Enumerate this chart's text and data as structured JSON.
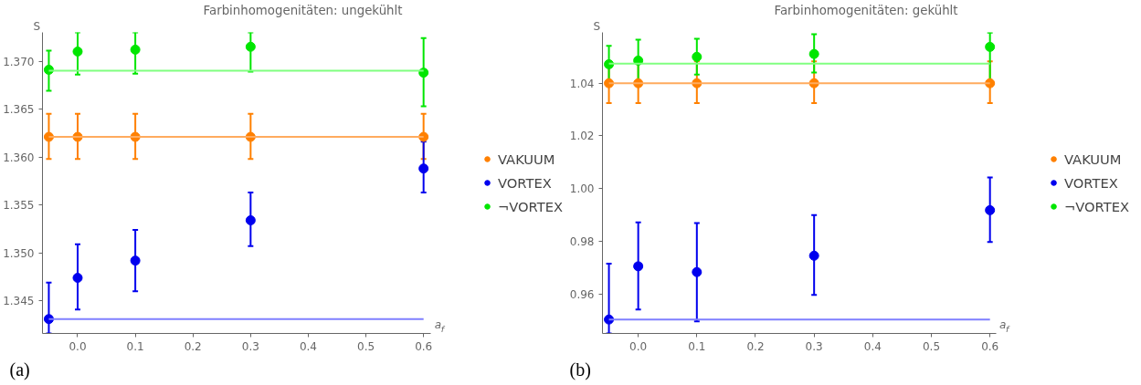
{
  "chart_data": [
    {
      "type": "scatter",
      "title": "Farbinhomogenitäten: ungekühlt",
      "xlabel": "a$_{f}$",
      "ylabel": "S",
      "xlim": [
        -0.061,
        0.613
      ],
      "ylim": [
        1.3416,
        1.373
      ],
      "xticks": [
        {
          "value": 0,
          "label": "0.0"
        },
        0.1,
        0.2,
        0.3,
        0.4,
        0.5,
        0.6
      ],
      "yticks": [
        1.345,
        {
          "value": 1.35,
          "label": "1.350"
        },
        1.355,
        {
          "value": 1.36,
          "label": "1.360"
        },
        1.365,
        {
          "value": 1.37,
          "label": "1.370"
        }
      ],
      "grid": false,
      "legend": "right",
      "marker": "circle",
      "annotations": [
        "(a)"
      ],
      "series": [
        {
          "name": "VAKUUM",
          "color": "#ff8000",
          "x": [
            -0.05,
            0,
            0.1,
            0.3,
            0.6
          ],
          "values": [
            1.3621,
            1.3621,
            1.3621,
            1.3621,
            1.3621
          ],
          "errors": [
            [
              1.3598,
              1.3645
            ],
            [
              1.3598,
              1.3645
            ],
            [
              1.3598,
              1.3645
            ],
            [
              1.3598,
              1.3645
            ],
            [
              1.3598,
              1.3645
            ]
          ]
        },
        {
          "name": "VORTEX",
          "color": "#0000ee",
          "x": [
            -0.05,
            0,
            0.1,
            0.3,
            0.6
          ],
          "values": [
            1.3431,
            1.3474,
            1.3492,
            1.3534,
            1.3588
          ],
          "errors": [
            [
              1.3416,
              1.3469
            ],
            [
              1.3441,
              1.3509
            ],
            [
              1.346,
              1.3524
            ],
            [
              1.3507,
              1.3563
            ],
            [
              1.3563,
              1.3616
            ]
          ]
        },
        {
          "name": "¬VORTEX",
          "color": "#00e600",
          "x": [
            -0.05,
            0,
            0.1,
            0.3,
            0.6
          ],
          "values": [
            1.3691,
            1.371,
            1.3712,
            1.3715,
            1.3688
          ],
          "errors": [
            [
              1.3669,
              1.3711
            ],
            [
              1.3686,
              1.373
            ],
            [
              1.3687,
              1.373
            ],
            [
              1.3689,
              1.373
            ],
            [
              1.3653,
              1.3724
            ]
          ]
        },
        {
          "type": "line",
          "marker": "none",
          "color": "#ffab5e",
          "x": [
            -0.05,
            0.6
          ],
          "values": [
            1.3621,
            1.3621
          ]
        },
        {
          "type": "line",
          "marker": "none",
          "color": "#7f7fff",
          "x": [
            -0.05,
            0.6
          ],
          "values": [
            1.3431,
            1.3431
          ]
        },
        {
          "type": "line",
          "marker": "none",
          "color": "#80ff80",
          "x": [
            -0.05,
            0.6
          ],
          "values": [
            1.369,
            1.369
          ]
        }
      ]
    },
    {
      "type": "scatter",
      "title": "Farbinhomogenitäten: gekühlt",
      "xlabel": "a$_{f}$",
      "ylabel": "S",
      "xlim": [
        -0.061,
        0.61
      ],
      "ylim": [
        0.945,
        1.0593
      ],
      "xticks": [
        {
          "value": 0,
          "label": "0.0"
        },
        0.1,
        0.2,
        0.3,
        0.4,
        0.5,
        0.6
      ],
      "yticks": [
        0.96,
        0.98,
        {
          "value": 1.0,
          "label": "1.00"
        },
        1.02,
        1.04
      ],
      "grid": false,
      "legend": "right",
      "marker": "circle",
      "annotations": [
        "(b)"
      ],
      "series": [
        {
          "name": "VAKUUM",
          "color": "#ff8000",
          "x": [
            -0.05,
            0,
            0.1,
            0.3,
            0.6
          ],
          "values": [
            1.04,
            1.04,
            1.04,
            1.04,
            1.04
          ],
          "errors": [
            [
              1.0325,
              1.0483
            ],
            [
              1.0325,
              1.0483
            ],
            [
              1.0325,
              1.0483
            ],
            [
              1.0325,
              1.0483
            ],
            [
              1.0325,
              1.0483
            ]
          ]
        },
        {
          "name": "VORTEX",
          "color": "#0000ee",
          "x": [
            -0.05,
            0,
            0.1,
            0.3,
            0.6
          ],
          "values": [
            0.9503,
            0.9705,
            0.9683,
            0.9745,
            0.9918
          ],
          "errors": [
            [
              0.945,
              0.9715
            ],
            [
              0.9541,
              0.9872
            ],
            [
              0.9496,
              0.9869
            ],
            [
              0.9596,
              0.9899
            ],
            [
              0.9797,
              1.0042
            ]
          ]
        },
        {
          "name": "¬VORTEX",
          "color": "#00e600",
          "x": [
            -0.05,
            0,
            0.1,
            0.3,
            0.6
          ],
          "values": [
            1.0472,
            1.0486,
            1.05,
            1.0511,
            1.0538
          ],
          "errors": [
            [
              1.0401,
              1.0542
            ],
            [
              1.0401,
              1.0565
            ],
            [
              1.0433,
              1.0569
            ],
            [
              1.0441,
              1.0586
            ],
            [
              1.0401,
              1.0592
            ]
          ]
        },
        {
          "type": "line",
          "marker": "none",
          "color": "#ffab5e",
          "x": [
            -0.05,
            0.6
          ],
          "values": [
            1.04,
            1.04
          ]
        },
        {
          "type": "line",
          "marker": "none",
          "color": "#7f7fff",
          "x": [
            -0.05,
            0.6
          ],
          "values": [
            0.9503,
            0.9503
          ]
        },
        {
          "type": "line",
          "marker": "none",
          "color": "#80ff80",
          "x": [
            -0.05,
            0.6
          ],
          "values": [
            1.0474,
            1.0474
          ]
        }
      ]
    }
  ]
}
